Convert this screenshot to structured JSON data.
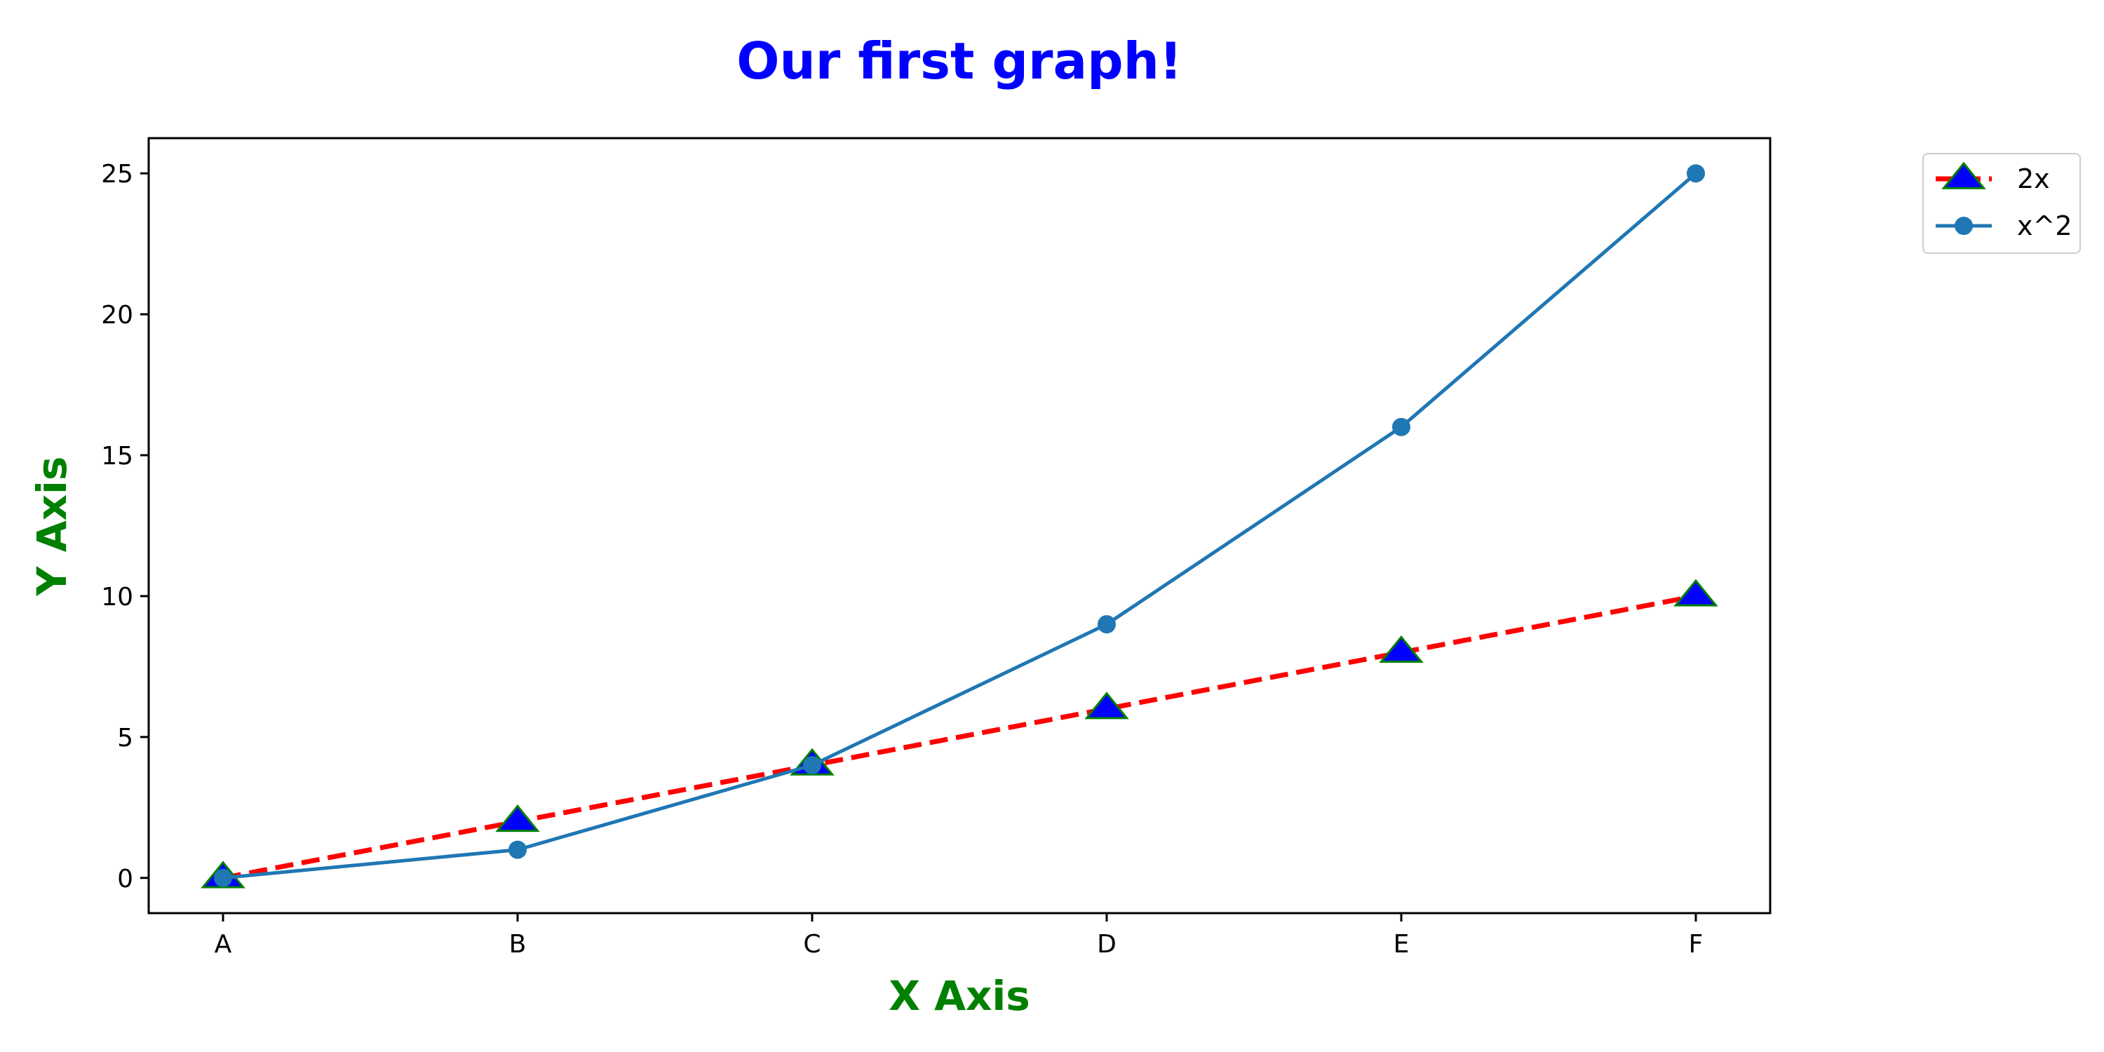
{
  "chart_data": {
    "type": "line",
    "title": "Our first graph!",
    "xlabel": "X Axis",
    "ylabel": "Y Axis",
    "categories": [
      "A",
      "B",
      "C",
      "D",
      "E",
      "F"
    ],
    "yticks": [
      0,
      5,
      10,
      15,
      20,
      25
    ],
    "ylim": [
      -1.25,
      26.25
    ],
    "grid": false,
    "legend_position": "outside-top-right",
    "colors": {
      "title": "#0000ff",
      "axis_labels": "#008000"
    },
    "series": [
      {
        "name": "2x",
        "values": [
          0,
          2,
          4,
          6,
          8,
          10
        ],
        "line_color": "#ff0000",
        "line_style": "dashed",
        "marker": "triangle",
        "marker_fill": "#0000ff",
        "marker_edge": "#008000"
      },
      {
        "name": "x^2",
        "values": [
          0,
          1,
          4,
          9,
          16,
          25
        ],
        "line_color": "#1f77b4",
        "line_style": "solid",
        "marker": "circle",
        "marker_fill": "#1f77b4",
        "marker_edge": "#1f77b4"
      }
    ]
  }
}
